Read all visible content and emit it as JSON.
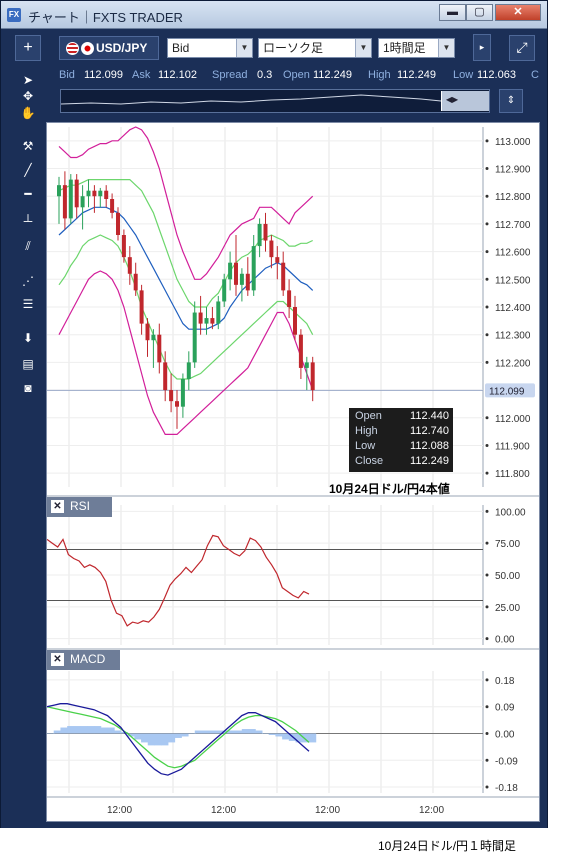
{
  "window": {
    "title": "チャート｜FXTS TRADER",
    "app_icon": "FX",
    "min_label": "▬",
    "max_label": "▢",
    "close_label": "✕"
  },
  "toolbar": {
    "add_label": "+",
    "symbol": "USD/JPY",
    "price_side": "Bid",
    "chart_type": "ローソク足",
    "timeframe": "1時間足",
    "panel_icon": "▸",
    "expand_icon": "⤢"
  },
  "quote": {
    "bid_label": "Bid",
    "bid": "112.099",
    "ask_label": "Ask",
    "ask": "112.102",
    "spread_label": "Spread",
    "spread": "0.3",
    "open_label": "Open",
    "open": "112.249",
    "high_label": "High",
    "high": "112.249",
    "low_label": "Low",
    "low": "112.063",
    "close_label": "C"
  },
  "tools": [
    "cursor-icon",
    "crosshair-icon",
    "hand-icon",
    "magic-line-icon",
    "trendline-icon",
    "horizontal-line-icon",
    "vertical-line-icon",
    "parallel-channel-icon",
    "fibonacci-fan-icon",
    "fibonacci-retracement-icon",
    "download-icon",
    "list-icon",
    "camera-icon"
  ],
  "ohlc_box": {
    "rows": [
      {
        "k": "Open",
        "v": "112.440"
      },
      {
        "k": "High",
        "v": "112.740"
      },
      {
        "k": "Low",
        "v": "112.088"
      },
      {
        "k": "Close",
        "v": "112.249"
      }
    ]
  },
  "captions": {
    "price_pane": "10月24日ドル/円4本値",
    "bottom": "10月24日ドル/円１時間足"
  },
  "colors": {
    "bull": "#2aa15b",
    "bear": "#c0272d",
    "upper_band": "#d21f9a",
    "mid_band": "#1f5fbf",
    "inner_band": "#6cd66c",
    "rsi": "#c0272d",
    "macd_line": "#1a1a9a",
    "signal_line": "#49d149",
    "histogram": "#a9c8f2"
  },
  "chart_data": [
    {
      "type": "candlestick",
      "title": "",
      "xlabel": "",
      "ylabel": "",
      "ylim": [
        111.75,
        113.05
      ],
      "yticks": [
        "113.000",
        "112.900",
        "112.800",
        "112.700",
        "112.600",
        "112.500",
        "112.400",
        "112.300",
        "112.200",
        "112.100",
        "112.000",
        "111.900",
        "111.800"
      ],
      "ytick_values": [
        113.0,
        112.9,
        112.8,
        112.7,
        112.6,
        112.5,
        112.4,
        112.3,
        112.2,
        112.1,
        112.0,
        111.9,
        111.8
      ],
      "xticks": [
        "12:00",
        "12:00",
        "12:00",
        "12:00"
      ],
      "current_price_label": "112.099",
      "current_price": 112.099,
      "candles": [
        [
          112.8,
          112.87,
          112.7,
          112.84
        ],
        [
          112.84,
          112.89,
          112.68,
          112.72
        ],
        [
          112.72,
          112.88,
          112.7,
          112.86
        ],
        [
          112.86,
          112.88,
          112.72,
          112.76
        ],
        [
          112.76,
          112.84,
          112.68,
          112.8
        ],
        [
          112.8,
          112.86,
          112.76,
          112.82
        ],
        [
          112.82,
          112.84,
          112.74,
          112.8
        ],
        [
          112.8,
          112.83,
          112.76,
          112.82
        ],
        [
          112.82,
          112.84,
          112.76,
          112.79
        ],
        [
          112.79,
          112.81,
          112.72,
          112.74
        ],
        [
          112.74,
          112.76,
          112.64,
          112.66
        ],
        [
          112.66,
          112.68,
          112.56,
          112.58
        ],
        [
          112.58,
          112.62,
          112.48,
          112.52
        ],
        [
          112.52,
          112.56,
          112.44,
          112.46
        ],
        [
          112.46,
          112.48,
          112.3,
          112.34
        ],
        [
          112.34,
          112.36,
          112.22,
          112.28
        ],
        [
          112.28,
          112.32,
          112.18,
          112.3
        ],
        [
          112.3,
          112.34,
          112.16,
          112.2
        ],
        [
          112.2,
          112.24,
          112.06,
          112.1
        ],
        [
          112.1,
          112.16,
          112.02,
          112.06
        ],
        [
          112.06,
          112.1,
          111.96,
          112.04
        ],
        [
          112.04,
          112.16,
          112.0,
          112.14
        ],
        [
          112.14,
          112.24,
          112.1,
          112.2
        ],
        [
          112.2,
          112.42,
          112.18,
          112.38
        ],
        [
          112.38,
          112.44,
          112.3,
          112.34
        ],
        [
          112.34,
          112.4,
          112.3,
          112.36
        ],
        [
          112.36,
          112.4,
          112.32,
          112.34
        ],
        [
          112.34,
          112.44,
          112.32,
          112.42
        ],
        [
          112.42,
          112.52,
          112.4,
          112.5
        ],
        [
          112.5,
          112.6,
          112.46,
          112.56
        ],
        [
          112.56,
          112.66,
          112.44,
          112.48
        ],
        [
          112.48,
          112.54,
          112.42,
          112.52
        ],
        [
          112.52,
          112.58,
          112.44,
          112.46
        ],
        [
          112.46,
          112.66,
          112.44,
          112.62
        ],
        [
          112.62,
          112.72,
          112.58,
          112.7
        ],
        [
          112.7,
          112.74,
          112.6,
          112.64
        ],
        [
          112.64,
          112.66,
          112.54,
          112.58
        ],
        [
          112.58,
          112.62,
          112.5,
          112.56
        ],
        [
          112.56,
          112.6,
          112.44,
          112.46
        ],
        [
          112.46,
          112.5,
          112.36,
          112.4
        ],
        [
          112.4,
          112.44,
          112.28,
          112.3
        ],
        [
          112.3,
          112.32,
          112.14,
          112.18
        ],
        [
          112.18,
          112.22,
          112.1,
          112.2
        ],
        [
          112.2,
          112.22,
          112.06,
          112.1
        ]
      ],
      "bands": {
        "upper": [
          112.98,
          112.96,
          112.94,
          112.94,
          112.95,
          112.97,
          112.98,
          112.99,
          112.99,
          113.0,
          113.0,
          113.02,
          113.04,
          113.05,
          113.04,
          113.01,
          112.96,
          112.9,
          112.82,
          112.74,
          112.66,
          112.6,
          112.55,
          112.5,
          112.5,
          112.52,
          112.55,
          112.58,
          112.62,
          112.66,
          112.68,
          112.7,
          112.71,
          112.72,
          112.76,
          112.76,
          112.76,
          112.74,
          112.72,
          112.7,
          112.74,
          112.76,
          112.78,
          112.8
        ],
        "mid": [
          112.66,
          112.68,
          112.7,
          112.72,
          112.74,
          112.75,
          112.76,
          112.76,
          112.76,
          112.75,
          112.74,
          112.72,
          112.69,
          112.66,
          112.62,
          112.58,
          112.54,
          112.5,
          112.46,
          112.42,
          112.38,
          112.34,
          112.32,
          112.32,
          112.32,
          112.32,
          112.33,
          112.34,
          112.36,
          112.4,
          112.43,
          112.46,
          112.48,
          112.5,
          112.52,
          112.54,
          112.55,
          112.56,
          112.55,
          112.53,
          112.51,
          112.49,
          112.48,
          112.46
        ],
        "inner_upper": [
          112.82,
          112.83,
          112.84,
          112.84,
          112.85,
          112.86,
          112.86,
          112.86,
          112.86,
          112.86,
          112.86,
          112.86,
          112.86,
          112.84,
          112.82,
          112.78,
          112.74,
          112.68,
          112.62,
          112.56,
          112.5,
          112.46,
          112.42,
          112.4,
          112.4,
          112.4,
          112.43,
          112.45,
          112.49,
          112.53,
          112.56,
          112.58,
          112.59,
          112.61,
          112.64,
          112.65,
          112.66,
          112.65,
          112.64,
          112.62,
          112.62,
          112.63,
          112.63,
          112.64
        ],
        "inner_lower": [
          112.48,
          112.51,
          112.55,
          112.58,
          112.62,
          112.64,
          112.65,
          112.66,
          112.65,
          112.64,
          112.62,
          112.58,
          112.53,
          112.47,
          112.4,
          112.35,
          112.3,
          112.25,
          112.2,
          112.16,
          112.14,
          112.14,
          112.14,
          112.15,
          112.16,
          112.18,
          112.2,
          112.22,
          112.24,
          112.26,
          112.28,
          112.3,
          112.32,
          112.34,
          112.36,
          112.38,
          112.4,
          112.42,
          112.42,
          112.4,
          112.38,
          112.36,
          112.34,
          112.3
        ],
        "lower": [
          112.3,
          112.34,
          112.38,
          112.42,
          112.46,
          112.5,
          112.52,
          112.53,
          112.52,
          112.5,
          112.46,
          112.4,
          112.32,
          112.24,
          112.16,
          112.08,
          112.02,
          111.98,
          111.94,
          111.94,
          111.94,
          111.96,
          111.98,
          112.0,
          112.02,
          112.04,
          112.06,
          112.08,
          112.1,
          112.12,
          112.14,
          112.16,
          112.18,
          112.22,
          112.26,
          112.3,
          112.34,
          112.38,
          112.38,
          112.34,
          112.28,
          112.22,
          112.16,
          112.1
        ]
      }
    },
    {
      "type": "line",
      "title": "RSI",
      "ylim": [
        -5,
        105
      ],
      "yticks": [
        "100.00",
        "75.00",
        "50.00",
        "25.00",
        "0.00"
      ],
      "ytick_values": [
        100,
        75,
        50,
        25,
        0
      ],
      "levels": [
        70,
        30
      ],
      "values": [
        78,
        75,
        72,
        78,
        66,
        63,
        61,
        56,
        58,
        56,
        52,
        45,
        30,
        20,
        18,
        10,
        13,
        12,
        14,
        13,
        17,
        23,
        32,
        42,
        47,
        51,
        56,
        52,
        57,
        62,
        73,
        81,
        80,
        73,
        70,
        67,
        65,
        69,
        79,
        77,
        72,
        64,
        58,
        51,
        40,
        37,
        34,
        32,
        37,
        35
      ]
    },
    {
      "type": "line",
      "title": "MACD",
      "ylim": [
        -0.2,
        0.21
      ],
      "yticks": [
        "0.18",
        "0.09",
        "0.00",
        "-0.09",
        "-0.18"
      ],
      "ytick_values": [
        0.18,
        0.09,
        0.0,
        -0.09,
        -0.18
      ],
      "series": [
        {
          "values": [
            0.09,
            0.095,
            0.1,
            0.1,
            0.095,
            0.09,
            0.085,
            0.08,
            0.07,
            0.06,
            0.04,
            0.02,
            -0.01,
            -0.04,
            -0.07,
            -0.1,
            -0.12,
            -0.135,
            -0.14,
            -0.13,
            -0.12,
            -0.1,
            -0.08,
            -0.06,
            -0.04,
            -0.02,
            0.0,
            0.02,
            0.04,
            0.06,
            0.07,
            0.07,
            0.06,
            0.05,
            0.04,
            0.02,
            0.0,
            -0.02,
            -0.04,
            -0.06
          ]
        },
        {
          "values": [
            0.09,
            0.085,
            0.08,
            0.075,
            0.07,
            0.065,
            0.06,
            0.055,
            0.05,
            0.04,
            0.03,
            0.015,
            0.0,
            -0.02,
            -0.04,
            -0.06,
            -0.08,
            -0.095,
            -0.11,
            -0.115,
            -0.11,
            -0.1,
            -0.09,
            -0.07,
            -0.05,
            -0.03,
            -0.01,
            0.01,
            0.03,
            0.045,
            0.055,
            0.06,
            0.06,
            0.055,
            0.05,
            0.04,
            0.025,
            0.01,
            -0.01,
            -0.03
          ]
        },
        {
          "values": [
            0.0,
            0.01,
            0.02,
            0.025,
            0.025,
            0.025,
            0.025,
            0.025,
            0.02,
            0.02,
            0.01,
            0.005,
            -0.01,
            -0.02,
            -0.03,
            -0.04,
            -0.04,
            -0.04,
            -0.03,
            -0.015,
            -0.01,
            0.0,
            0.01,
            0.01,
            0.01,
            0.01,
            0.01,
            0.01,
            0.01,
            0.015,
            0.015,
            0.01,
            0.0,
            -0.005,
            -0.01,
            -0.02,
            -0.025,
            -0.03,
            -0.03,
            -0.03
          ]
        }
      ]
    }
  ]
}
